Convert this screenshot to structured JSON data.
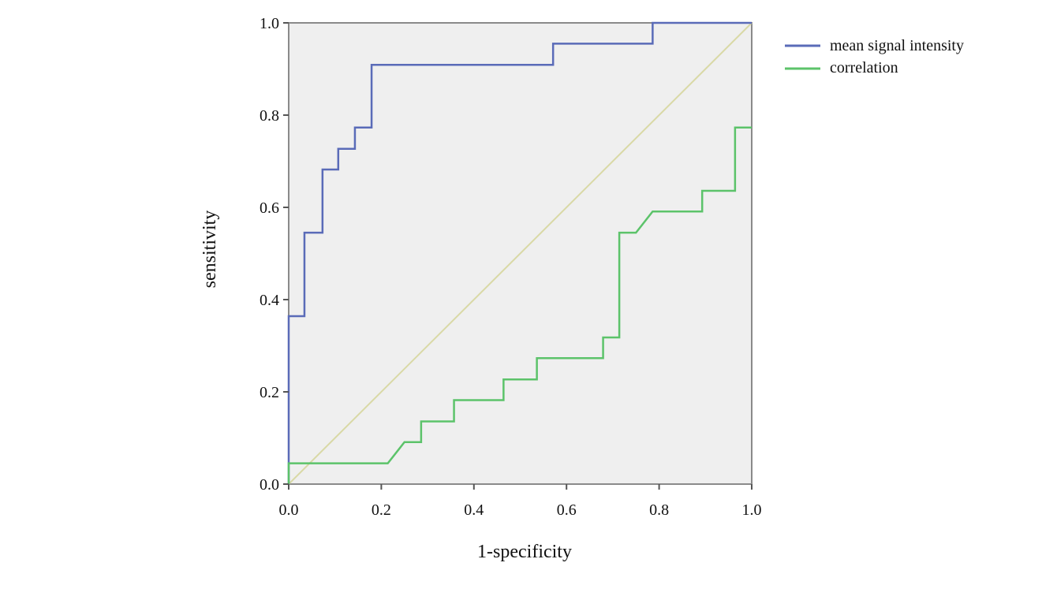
{
  "chart_data": {
    "type": "line",
    "title": "",
    "xlabel": "1-specificity",
    "ylabel": "sensitivity",
    "xlim": [
      0,
      1
    ],
    "ylim": [
      0,
      1
    ],
    "xticks": [
      "0.0",
      "0.2",
      "0.4",
      "0.6",
      "0.8",
      "1.0"
    ],
    "yticks": [
      "0.0",
      "0.2",
      "0.4",
      "0.6",
      "0.8",
      "1.0"
    ],
    "legend_position": "top-right, outside",
    "reference_line": {
      "x": [
        0,
        1
      ],
      "y": [
        0,
        1
      ],
      "color": "#d9d9a6"
    },
    "series": [
      {
        "name": "mean signal intensity",
        "color": "#5a6bb8",
        "x": [
          0,
          0,
          0.034,
          0.034,
          0.073,
          0.073,
          0.107,
          0.107,
          0.143,
          0.143,
          0.179,
          0.179,
          0.571,
          0.571,
          0.786,
          0.786,
          1.0
        ],
        "y": [
          0,
          0.364,
          0.364,
          0.545,
          0.545,
          0.682,
          0.682,
          0.727,
          0.727,
          0.773,
          0.773,
          0.909,
          0.909,
          0.955,
          0.955,
          1.0,
          1.0
        ]
      },
      {
        "name": "correlation",
        "color": "#5cc36a",
        "x": [
          0,
          0,
          0.214,
          0.25,
          0.286,
          0.286,
          0.357,
          0.357,
          0.464,
          0.464,
          0.536,
          0.536,
          0.679,
          0.679,
          0.714,
          0.714,
          0.75,
          0.786,
          0.893,
          0.893,
          0.964,
          0.964,
          1.0
        ],
        "y": [
          0,
          0.045,
          0.045,
          0.091,
          0.091,
          0.136,
          0.136,
          0.182,
          0.182,
          0.227,
          0.227,
          0.273,
          0.273,
          0.318,
          0.318,
          0.545,
          0.545,
          0.591,
          0.591,
          0.636,
          0.636,
          0.773,
          0.773
        ]
      }
    ]
  }
}
